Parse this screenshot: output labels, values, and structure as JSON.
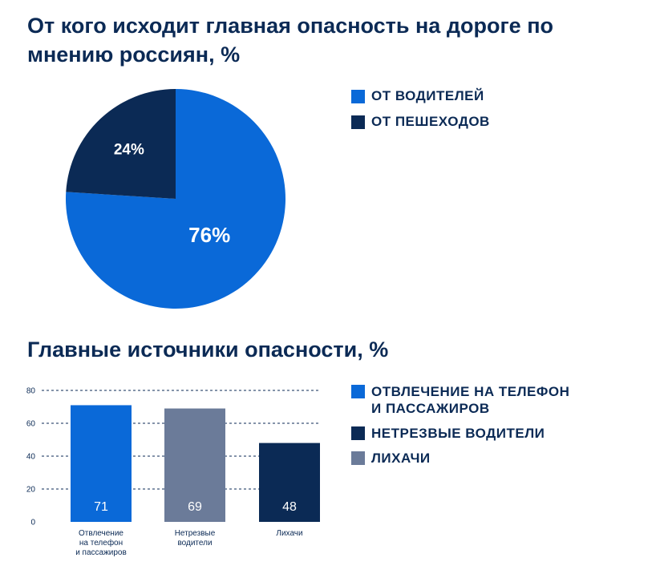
{
  "colors": {
    "primary": "#0a69d8",
    "dark": "#0b2a55",
    "gray": "#6b7b99"
  },
  "pie": {
    "title": "От кого исходит главная опасность на дороге по мнению россиян, %",
    "legend": [
      {
        "label": "ОТ ВОДИТЕЛЕЙ",
        "color": "#0a69d8"
      },
      {
        "label": "ОТ ПЕШЕХОДОВ",
        "color": "#0b2a55"
      }
    ]
  },
  "bars": {
    "title": "Главные источники опасности, %",
    "legend": [
      {
        "label": "ОТВЛЕЧЕНИЕ НА ТЕЛЕФОН\nИ ПАССАЖИРОВ",
        "color": "#0a69d8"
      },
      {
        "label": "НЕТРЕЗВЫЕ ВОДИТЕЛИ",
        "color": "#0b2a55"
      },
      {
        "label": "ЛИХАЧИ",
        "color": "#6b7b99"
      }
    ]
  },
  "chart_data": [
    {
      "type": "pie",
      "title": "От кого исходит главная опасность на дороге по мнению россиян, %",
      "slices": [
        {
          "label": "ОТ ВОДИТЕЛЕЙ",
          "value": 76,
          "display": "76%",
          "color": "#0a69d8"
        },
        {
          "label": "ОТ ПЕШЕХОДОВ",
          "value": 24,
          "display": "24%",
          "color": "#0b2a55"
        }
      ]
    },
    {
      "type": "bar",
      "title": "Главные источники опасности, %",
      "categories": [
        "Отвлечение\nна телефон\nи пассажиров",
        "Нетрезвые\nводители",
        "Лихачи"
      ],
      "values": [
        71,
        69,
        48
      ],
      "colors": [
        "#0a69d8",
        "#6b7b99",
        "#0b2a55"
      ],
      "ylim": [
        0,
        80
      ],
      "yticks": [
        0,
        20,
        40,
        60,
        80
      ],
      "grid": true
    }
  ]
}
